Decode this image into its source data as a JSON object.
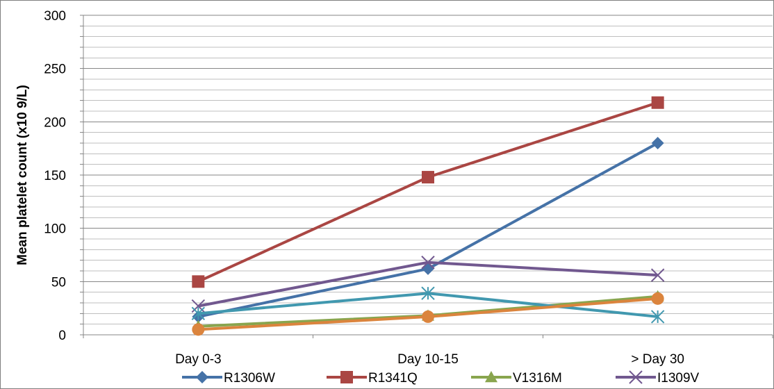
{
  "chart_data": {
    "type": "line",
    "categories": [
      "Day 0-3",
      "Day 10-15",
      "> Day 30"
    ],
    "ylabel": "Mean platelet count  (x10 9/L)",
    "xlabel": "",
    "ylim": [
      0,
      300
    ],
    "y_ticks": [
      "0",
      "50",
      "100",
      "150",
      "200",
      "250",
      "300"
    ],
    "grid": true,
    "legend_position": "bottom",
    "series": [
      {
        "name": "R1306W",
        "color": "#4572A7",
        "marker": "diamond",
        "values": [
          17,
          62,
          180
        ]
      },
      {
        "name": "R1341Q",
        "color": "#AA4643",
        "marker": "square",
        "values": [
          50,
          148,
          218
        ]
      },
      {
        "name": "V1316M",
        "color": "#89A54E",
        "marker": "triangle",
        "values": [
          8,
          18,
          36
        ]
      },
      {
        "name": "I1309V",
        "color": "#71588F",
        "marker": "x",
        "values": [
          27,
          68,
          56
        ]
      },
      {
        "name": "",
        "color": "#4198AF",
        "marker": "star",
        "values": [
          20,
          39,
          17
        ]
      },
      {
        "name": "",
        "color": "#DB843D",
        "marker": "circle",
        "values": [
          5,
          17,
          34
        ]
      }
    ]
  }
}
